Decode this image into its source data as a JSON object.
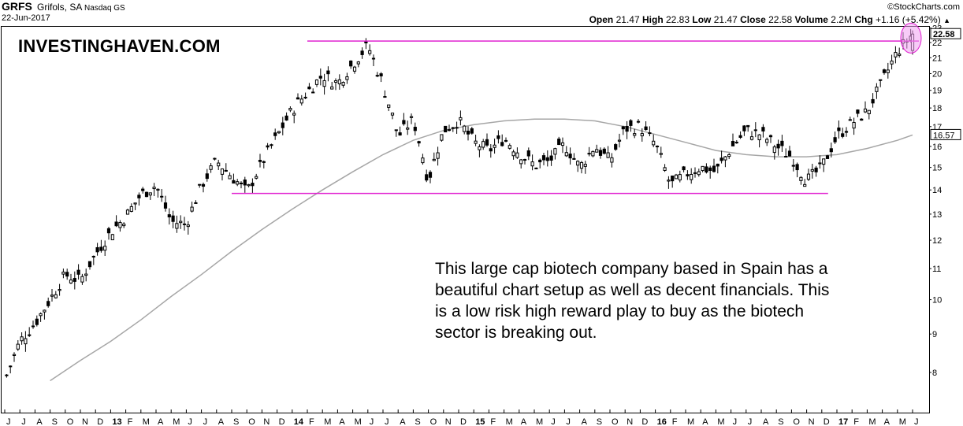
{
  "header": {
    "ticker": "GRFS",
    "company": "Grifols, SA",
    "exchange": "Nasdaq GS",
    "date": "22-Jun-2017",
    "source": "©StockCharts.com",
    "open_label": "Open",
    "open": "21.47",
    "high_label": "High",
    "high": "22.83",
    "low_label": "Low",
    "low": "21.47",
    "close_label": "Close",
    "close": "22.58",
    "volume_label": "Volume",
    "volume": "2.2M",
    "chg_label": "Chg",
    "chg": "+1.16 (+5.42%)"
  },
  "brand": "INVESTINGHAVEN.COM",
  "annotation": "This large cap biotech company based in Spain has a beautiful chart setup as well as decent financials. This is a low risk high reward play to buy as the biotech sector is breaking out.",
  "colors": {
    "resistance": "#e020d0",
    "ma": "#a6a6a6",
    "highlight": "#f0a0f0",
    "bars": "#000000"
  },
  "chart_data": {
    "type": "line",
    "subtype": "ohlc-bars",
    "scale": "log",
    "ylim": [
      7,
      23
    ],
    "y_ticks": [
      8,
      9,
      10,
      11,
      12,
      13,
      14,
      15,
      16,
      17,
      18,
      19,
      20,
      21,
      22,
      23
    ],
    "x_ticks": [
      "J",
      "J",
      "A",
      "S",
      "O",
      "N",
      "D",
      "13",
      "F",
      "M",
      "A",
      "M",
      "J",
      "J",
      "A",
      "S",
      "O",
      "N",
      "D",
      "14",
      "F",
      "M",
      "A",
      "M",
      "J",
      "J",
      "A",
      "S",
      "O",
      "N",
      "D",
      "15",
      "F",
      "M",
      "A",
      "M",
      "J",
      "J",
      "A",
      "S",
      "O",
      "N",
      "D",
      "16",
      "F",
      "M",
      "A",
      "M",
      "J",
      "J",
      "A",
      "S",
      "O",
      "N",
      "D",
      "17",
      "F",
      "M",
      "A",
      "M",
      "J"
    ],
    "year_ticks": [
      "13",
      "14",
      "15",
      "16",
      "17"
    ],
    "last_price_label": "22.58",
    "ma_label": "16.57",
    "series": [
      {
        "name": "",
        "x": [
          "2012-06",
          "2012-07",
          "2012-08",
          "2012-09",
          "2012-10",
          "2012-11",
          "2012-12",
          "2013-01",
          "2013-02",
          "2013-03",
          "2013-04",
          "2013-05",
          "2013-06",
          "2013-07",
          "2013-08",
          "2013-09",
          "2013-10",
          "2013-11",
          "2013-12",
          "2014-01",
          "2014-02",
          "2014-03",
          "2014-04",
          "2014-05",
          "2014-06",
          "2014-07",
          "2014-08",
          "2014-09",
          "2014-10",
          "2014-11",
          "2014-12",
          "2015-01",
          "2015-02",
          "2015-03",
          "2015-04",
          "2015-05",
          "2015-06",
          "2015-07",
          "2015-08",
          "2015-09",
          "2015-10",
          "2015-11",
          "2015-12",
          "2016-01",
          "2016-02",
          "2016-03",
          "2016-04",
          "2016-05",
          "2016-06",
          "2016-07",
          "2016-08",
          "2016-09",
          "2016-10",
          "2016-11",
          "2016-12",
          "2017-01",
          "2017-02",
          "2017-03",
          "2017-04",
          "2017-05",
          "2017-06"
        ],
        "values": [
          7.8,
          8.8,
          9.3,
          10.0,
          10.8,
          10.6,
          11.5,
          12.3,
          12.9,
          13.8,
          14.2,
          12.7,
          12.6,
          14.2,
          15.3,
          14.6,
          13.9,
          15.2,
          16.5,
          17.9,
          18.9,
          19.9,
          19.4,
          20.6,
          21.8,
          19.3,
          16.5,
          17.4,
          14.4,
          16.8,
          17.3,
          16.2,
          15.8,
          16.4,
          15.7,
          15.1,
          15.3,
          16.1,
          15.0,
          16.0,
          15.3,
          16.9,
          17.0,
          16.1,
          14.2,
          14.7,
          15.0,
          14.8,
          15.9,
          16.8,
          16.6,
          16.0,
          15.5,
          14.4,
          15.0,
          16.5,
          17.2,
          17.8,
          19.5,
          21.4,
          22.58
        ]
      },
      {
        "name": "",
        "x": [
          "2012-09",
          "2012-11",
          "2013-01",
          "2013-03",
          "2013-05",
          "2013-07",
          "2013-09",
          "2013-11",
          "2014-01",
          "2014-03",
          "2014-05",
          "2014-07",
          "2014-09",
          "2014-11",
          "2015-01",
          "2015-03",
          "2015-05",
          "2015-07",
          "2015-09",
          "2015-11",
          "2016-01",
          "2016-03",
          "2016-05",
          "2016-07",
          "2016-09",
          "2016-11",
          "2017-01",
          "2017-03",
          "2017-05",
          "2017-06"
        ],
        "values": [
          7.8,
          8.3,
          8.8,
          9.4,
          10.1,
          10.8,
          11.6,
          12.4,
          13.2,
          14.0,
          14.8,
          15.6,
          16.3,
          16.8,
          17.1,
          17.3,
          17.4,
          17.4,
          17.3,
          17.0,
          16.6,
          16.2,
          15.8,
          15.6,
          15.5,
          15.5,
          15.6,
          15.9,
          16.3,
          16.57
        ]
      }
    ],
    "reference_lines": [
      {
        "name": "",
        "value": 22.1,
        "from": "2014-02",
        "to": "2017-06"
      },
      {
        "name": "",
        "value": 13.85,
        "from": "2013-09",
        "to": "2016-12"
      }
    ]
  }
}
